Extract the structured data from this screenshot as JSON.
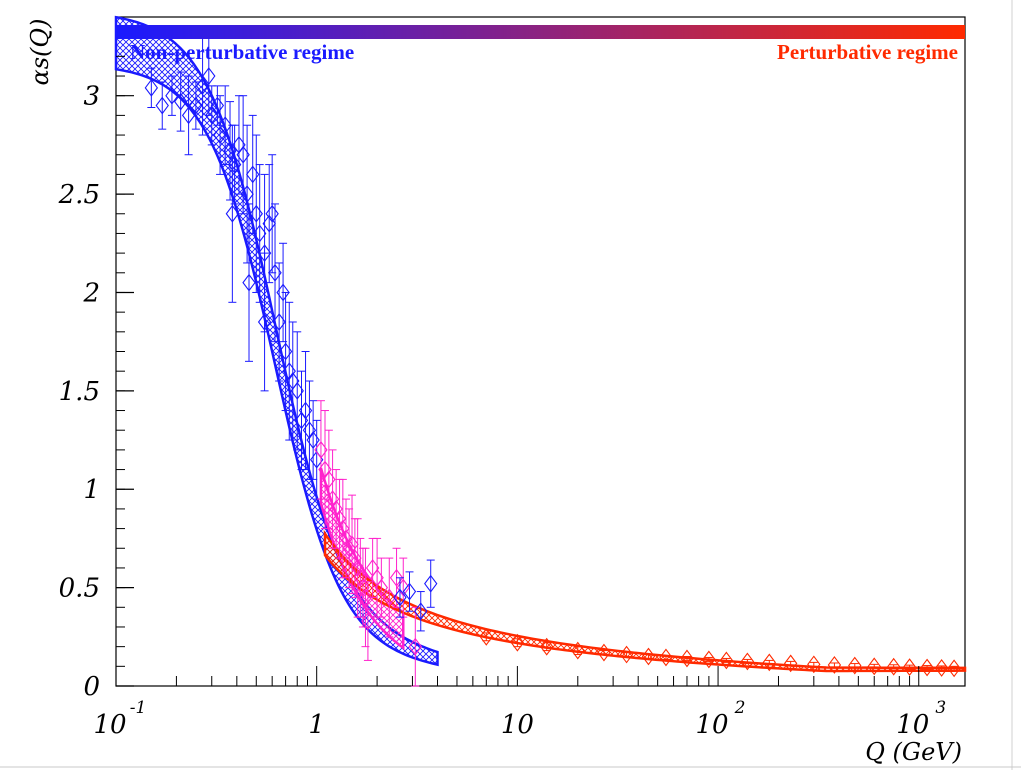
{
  "chart_data": {
    "type": "scatter",
    "title": "",
    "xlabel": "Q (GeV)",
    "ylabel": "αs(Q)",
    "x_scale": "log",
    "xlim": [
      0.1,
      1700
    ],
    "ylim": [
      0,
      3.4
    ],
    "x_ticks": [
      {
        "value": 0.1,
        "base": "10",
        "exp": "-1"
      },
      {
        "value": 1,
        "base": "1",
        "exp": ""
      },
      {
        "value": 10,
        "base": "10",
        "exp": ""
      },
      {
        "value": 100,
        "base": "10",
        "exp": "2"
      },
      {
        "value": 1000,
        "base": "10",
        "exp": "3"
      }
    ],
    "y_ticks": [
      {
        "value": 0,
        "label": "0"
      },
      {
        "value": 0.5,
        "label": "0.5"
      },
      {
        "value": 1,
        "label": "1"
      },
      {
        "value": 1.5,
        "label": "1.5"
      },
      {
        "value": 2,
        "label": "2"
      },
      {
        "value": 2.5,
        "label": "2.5"
      },
      {
        "value": 3,
        "label": "3"
      }
    ],
    "regime_bar": {
      "left_label": "Non-perturbative regime",
      "right_label": "Perturbative regime",
      "left_color": "#1a1aff",
      "right_color": "#ff2a00"
    },
    "series": [
      {
        "color": "#1a1aff",
        "marker": "diamond",
        "points": [
          {
            "x": 0.15,
            "y": 3.04,
            "err": 0.1
          },
          {
            "x": 0.17,
            "y": 2.95,
            "err": 0.12
          },
          {
            "x": 0.19,
            "y": 3.0,
            "err": 0.1
          },
          {
            "x": 0.21,
            "y": 2.97,
            "err": 0.15
          },
          {
            "x": 0.23,
            "y": 2.9,
            "err": 0.2
          },
          {
            "x": 0.25,
            "y": 2.95,
            "err": 0.12
          },
          {
            "x": 0.27,
            "y": 3.05,
            "err": 0.25
          },
          {
            "x": 0.29,
            "y": 3.1,
            "err": 0.2
          },
          {
            "x": 0.3,
            "y": 2.9,
            "err": 0.15
          },
          {
            "x": 0.32,
            "y": 2.95,
            "err": 0.1
          },
          {
            "x": 0.33,
            "y": 2.8,
            "err": 0.2
          },
          {
            "x": 0.35,
            "y": 2.85,
            "err": 0.2
          },
          {
            "x": 0.37,
            "y": 2.72,
            "err": 0.25
          },
          {
            "x": 0.39,
            "y": 2.65,
            "err": 0.2
          },
          {
            "x": 0.41,
            "y": 2.75,
            "err": 0.25
          },
          {
            "x": 0.43,
            "y": 2.7,
            "err": 0.3
          },
          {
            "x": 0.45,
            "y": 2.5,
            "err": 0.35
          },
          {
            "x": 0.48,
            "y": 2.6,
            "err": 0.3
          },
          {
            "x": 0.5,
            "y": 2.4,
            "err": 0.4
          },
          {
            "x": 0.52,
            "y": 2.3,
            "err": 0.35
          },
          {
            "x": 0.55,
            "y": 2.2,
            "err": 0.4
          },
          {
            "x": 0.58,
            "y": 2.35,
            "err": 0.3
          },
          {
            "x": 0.6,
            "y": 2.4,
            "err": 0.3
          },
          {
            "x": 0.62,
            "y": 2.1,
            "err": 0.35
          },
          {
            "x": 0.65,
            "y": 1.85,
            "err": 0.3
          },
          {
            "x": 0.68,
            "y": 2.0,
            "err": 0.25
          },
          {
            "x": 0.7,
            "y": 1.7,
            "err": 0.3
          },
          {
            "x": 0.73,
            "y": 1.6,
            "err": 0.35
          },
          {
            "x": 0.76,
            "y": 1.55,
            "err": 0.3
          },
          {
            "x": 0.8,
            "y": 1.5,
            "err": 0.3
          },
          {
            "x": 0.84,
            "y": 1.35,
            "err": 0.25
          },
          {
            "x": 0.88,
            "y": 1.4,
            "err": 0.3
          },
          {
            "x": 0.92,
            "y": 1.3,
            "err": 0.25
          },
          {
            "x": 0.96,
            "y": 1.25,
            "err": 0.2
          },
          {
            "x": 1.0,
            "y": 1.15,
            "err": 0.2
          },
          {
            "x": 0.38,
            "y": 2.4,
            "err": 0.45
          },
          {
            "x": 0.55,
            "y": 1.85,
            "err": 0.35
          },
          {
            "x": 0.46,
            "y": 2.05,
            "err": 0.4
          }
        ]
      },
      {
        "color": "#ff22cc",
        "marker": "diamond",
        "points": [
          {
            "x": 1.05,
            "y": 1.2,
            "err": 0.25
          },
          {
            "x": 1.1,
            "y": 1.1,
            "err": 0.3
          },
          {
            "x": 1.15,
            "y": 1.05,
            "err": 0.25
          },
          {
            "x": 1.2,
            "y": 0.95,
            "err": 0.25
          },
          {
            "x": 1.25,
            "y": 0.9,
            "err": 0.2
          },
          {
            "x": 1.3,
            "y": 0.85,
            "err": 0.2
          },
          {
            "x": 1.35,
            "y": 0.8,
            "err": 0.25
          },
          {
            "x": 1.4,
            "y": 0.75,
            "err": 0.2
          },
          {
            "x": 1.45,
            "y": 0.7,
            "err": 0.2
          },
          {
            "x": 1.5,
            "y": 0.72,
            "err": 0.25
          },
          {
            "x": 1.55,
            "y": 0.65,
            "err": 0.2
          },
          {
            "x": 1.6,
            "y": 0.6,
            "err": 0.25
          },
          {
            "x": 1.65,
            "y": 0.55,
            "err": 0.2
          },
          {
            "x": 1.7,
            "y": 0.5,
            "err": 0.2
          },
          {
            "x": 1.75,
            "y": 0.45,
            "err": 0.25
          },
          {
            "x": 1.8,
            "y": 0.33,
            "err": 0.2
          },
          {
            "x": 1.9,
            "y": 0.6,
            "err": 0.15
          },
          {
            "x": 2.0,
            "y": 0.55,
            "err": 0.2
          },
          {
            "x": 2.1,
            "y": 0.5,
            "err": 0.15
          },
          {
            "x": 2.3,
            "y": 0.45,
            "err": 0.2
          },
          {
            "x": 2.5,
            "y": 0.55,
            "err": 0.15
          },
          {
            "x": 2.7,
            "y": 0.5,
            "err": 0.15
          },
          {
            "x": 3.1,
            "y": 0.2,
            "err": 0.2
          }
        ]
      },
      {
        "color": "#1a1aff",
        "marker": "diamond",
        "points": [
          {
            "x": 2.6,
            "y": 0.45,
            "err": 0.1
          },
          {
            "x": 2.9,
            "y": 0.48,
            "err": 0.1
          },
          {
            "x": 3.3,
            "y": 0.38,
            "err": 0.1
          },
          {
            "x": 3.7,
            "y": 0.52,
            "err": 0.12
          }
        ]
      },
      {
        "color": "#ff2a00",
        "marker": "diamond",
        "points": [
          {
            "x": 7,
            "y": 0.25,
            "err": 0.02
          },
          {
            "x": 10,
            "y": 0.22,
            "err": 0.02
          },
          {
            "x": 14,
            "y": 0.2,
            "err": 0.02
          },
          {
            "x": 20,
            "y": 0.18,
            "err": 0.02
          },
          {
            "x": 27,
            "y": 0.17,
            "err": 0.01
          },
          {
            "x": 35,
            "y": 0.16,
            "err": 0.01
          },
          {
            "x": 45,
            "y": 0.15,
            "err": 0.01
          },
          {
            "x": 55,
            "y": 0.145,
            "err": 0.01
          },
          {
            "x": 70,
            "y": 0.14,
            "err": 0.01
          },
          {
            "x": 90,
            "y": 0.135,
            "err": 0.01
          },
          {
            "x": 110,
            "y": 0.13,
            "err": 0.01
          },
          {
            "x": 140,
            "y": 0.125,
            "err": 0.01
          },
          {
            "x": 180,
            "y": 0.12,
            "err": 0.01
          },
          {
            "x": 230,
            "y": 0.115,
            "err": 0.01
          },
          {
            "x": 300,
            "y": 0.11,
            "err": 0.01
          },
          {
            "x": 380,
            "y": 0.107,
            "err": 0.01
          },
          {
            "x": 480,
            "y": 0.104,
            "err": 0.01
          },
          {
            "x": 600,
            "y": 0.1,
            "err": 0.01
          },
          {
            "x": 750,
            "y": 0.098,
            "err": 0.01
          },
          {
            "x": 900,
            "y": 0.096,
            "err": 0.01
          },
          {
            "x": 1100,
            "y": 0.094,
            "err": 0.01
          },
          {
            "x": 1300,
            "y": 0.092,
            "err": 0.01
          },
          {
            "x": 1500,
            "y": 0.09,
            "err": 0.01
          }
        ]
      }
    ],
    "bands": [
      {
        "color": "#1a1aff",
        "x_from": 0.1,
        "x_to": 4.0
      },
      {
        "color": "#ff22cc",
        "x_from": 1.05,
        "x_to": 2.7
      },
      {
        "color": "#ff2a00",
        "x_from": 1.1,
        "x_to": 1700
      }
    ]
  }
}
